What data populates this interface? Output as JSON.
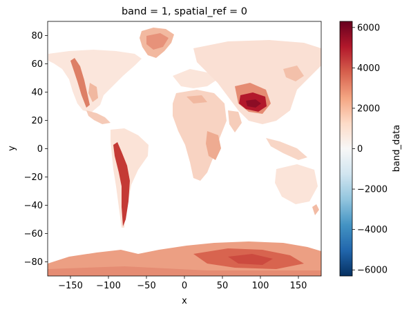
{
  "chart_data": {
    "type": "heatmap",
    "title": "band = 1, spatial_ref = 0",
    "xlabel": "x",
    "ylabel": "y",
    "xlim": [
      -180,
      180
    ],
    "ylim": [
      -90,
      90
    ],
    "x_ticks": [
      -150,
      -100,
      -50,
      0,
      50,
      100,
      150
    ],
    "y_ticks": [
      -80,
      -60,
      -40,
      -20,
      0,
      20,
      40,
      60,
      80
    ],
    "colorbar": {
      "label": "band_data",
      "colormap": "RdBu_r",
      "range": [
        -6300,
        6300
      ],
      "ticks": [
        -6000,
        -4000,
        -2000,
        0,
        2000,
        4000,
        6000
      ]
    }
  }
}
